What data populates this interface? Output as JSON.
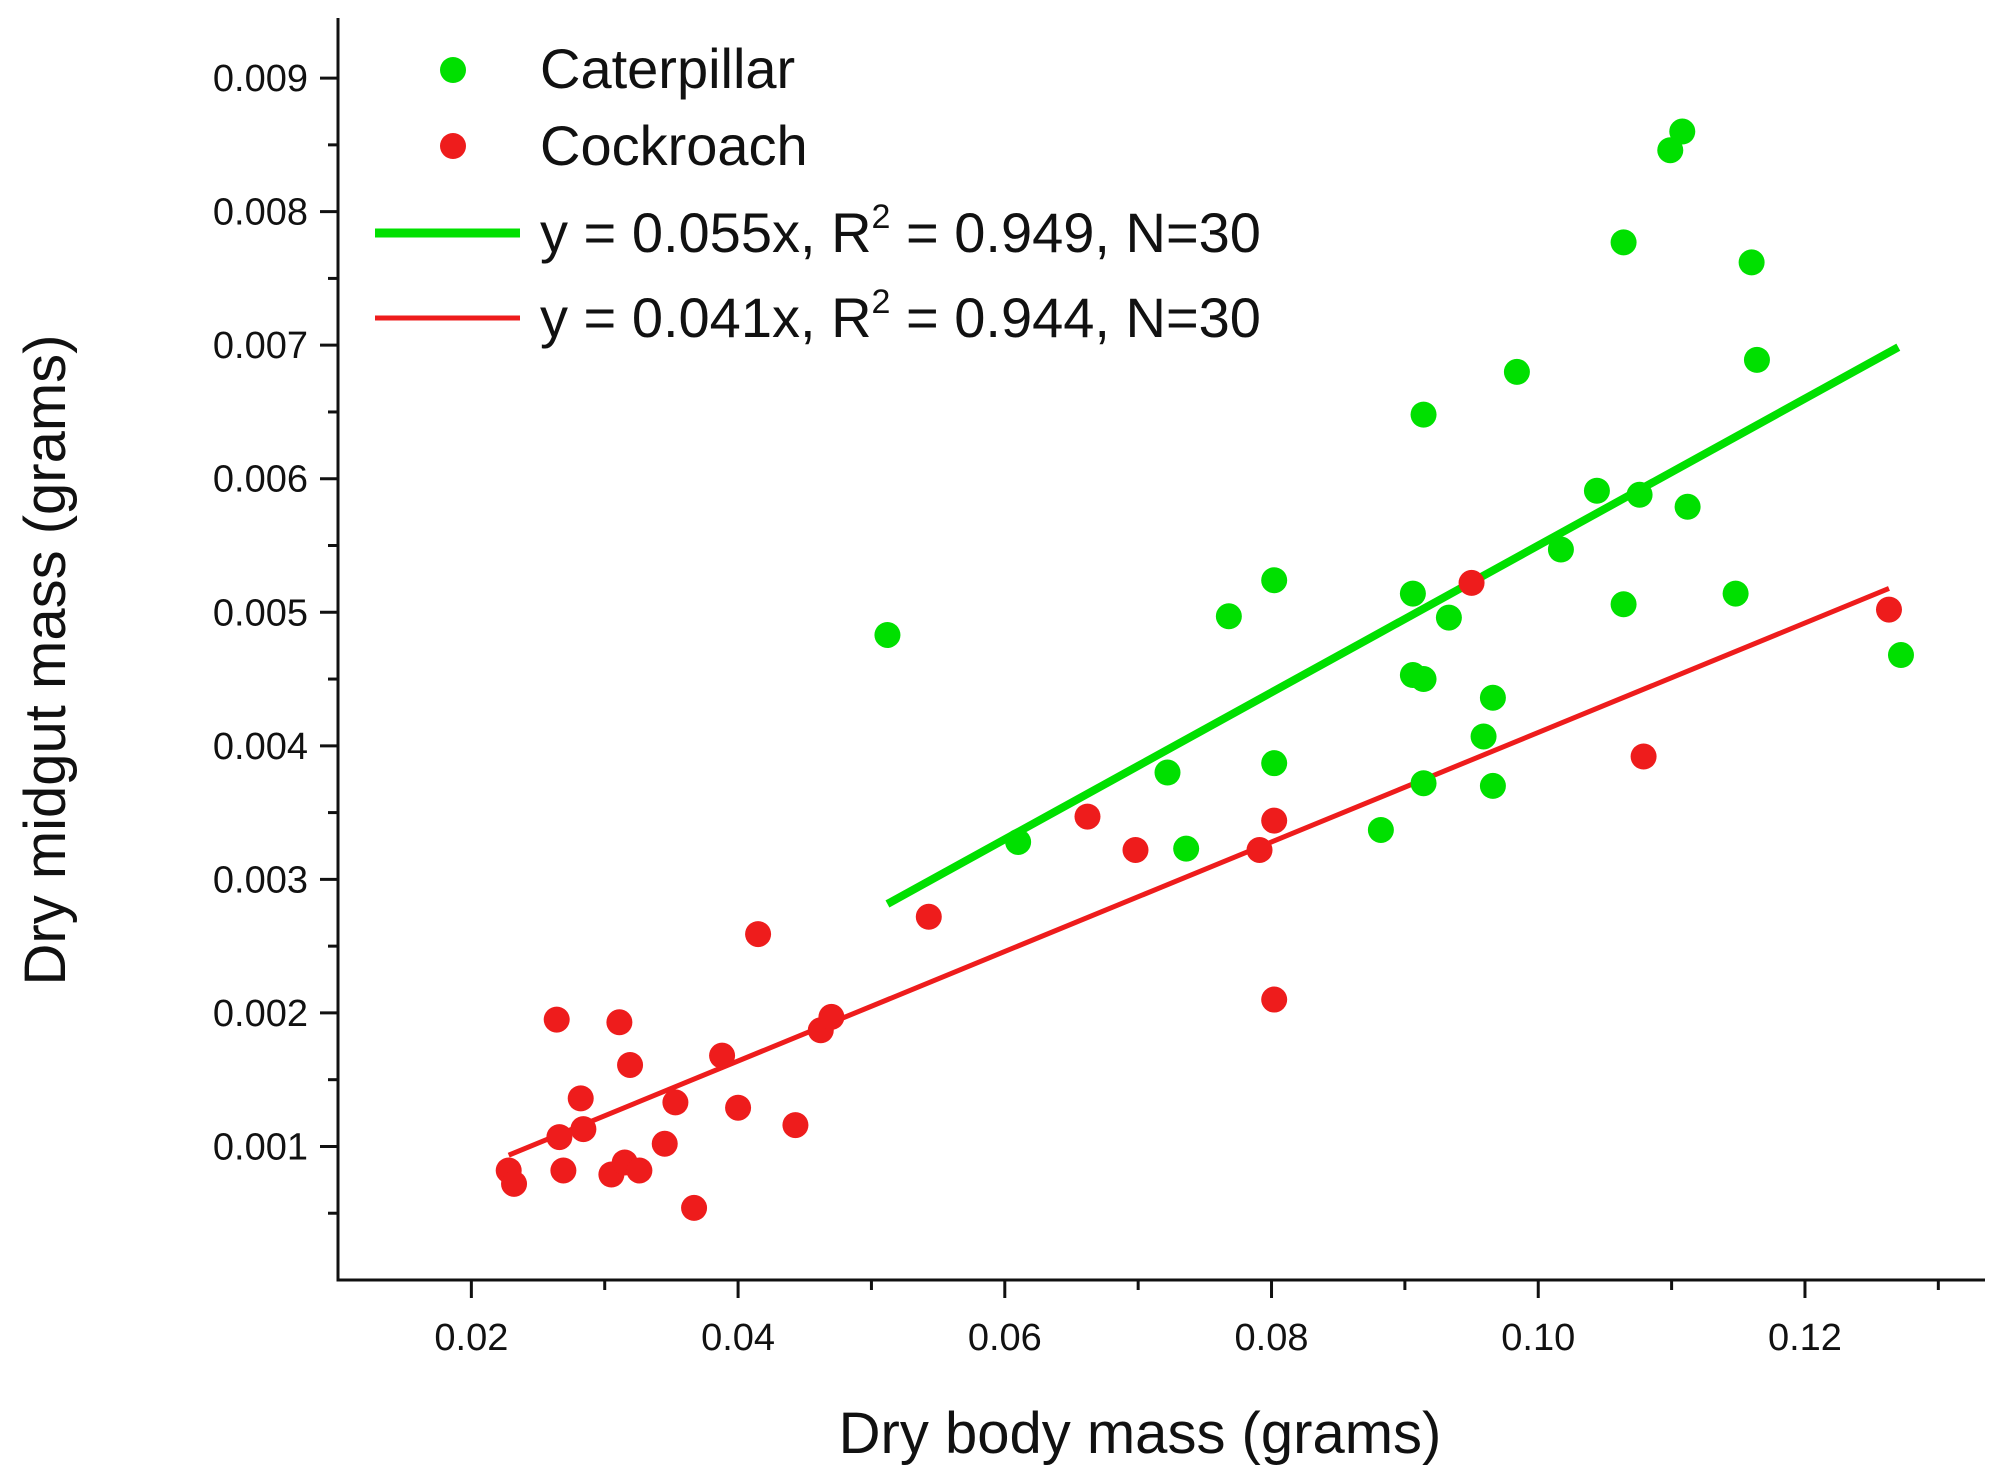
{
  "chart_data": {
    "type": "scatter",
    "title": "",
    "xlabel": "Dry body mass (grams)",
    "ylabel": "Dry midgut mass (grams)",
    "xlim": [
      0.01,
      0.1335
    ],
    "ylim": [
      0.0,
      0.00945
    ],
    "x_ticks": [
      "0.02",
      "0.04",
      "0.06",
      "0.08",
      "0.10",
      "0.12"
    ],
    "y_ticks": [
      "0.001",
      "0.002",
      "0.003",
      "0.004",
      "0.005",
      "0.006",
      "0.007",
      "0.008",
      "0.009"
    ],
    "grid": false,
    "legend_position": "top-left",
    "series": [
      {
        "name": "Caterpillar",
        "color": "#00e000",
        "points": [
          [
            0.0512,
            0.00483
          ],
          [
            0.061,
            0.00328
          ],
          [
            0.0722,
            0.0038
          ],
          [
            0.0736,
            0.00323
          ],
          [
            0.0768,
            0.00497
          ],
          [
            0.0802,
            0.00524
          ],
          [
            0.0802,
            0.00387
          ],
          [
            0.0882,
            0.00337
          ],
          [
            0.0906,
            0.00514
          ],
          [
            0.0906,
            0.00453
          ],
          [
            0.0914,
            0.0045
          ],
          [
            0.0914,
            0.00648
          ],
          [
            0.0914,
            0.00372
          ],
          [
            0.0933,
            0.00496
          ],
          [
            0.0959,
            0.00407
          ],
          [
            0.0966,
            0.00436
          ],
          [
            0.0966,
            0.0037
          ],
          [
            0.0984,
            0.0068
          ],
          [
            0.1017,
            0.00547
          ],
          [
            0.1044,
            0.00591
          ],
          [
            0.1064,
            0.00777
          ],
          [
            0.1064,
            0.00506
          ],
          [
            0.1076,
            0.00588
          ],
          [
            0.1099,
            0.00846
          ],
          [
            0.1108,
            0.0086
          ],
          [
            0.1112,
            0.00579
          ],
          [
            0.1148,
            0.00514
          ],
          [
            0.116,
            0.00762
          ],
          [
            0.1164,
            0.00689
          ],
          [
            0.1272,
            0.00468
          ]
        ]
      },
      {
        "name": "Cockroach",
        "color": "#ee1c1c",
        "points": [
          [
            0.0228,
            0.00082
          ],
          [
            0.0232,
            0.00072
          ],
          [
            0.0264,
            0.00195
          ],
          [
            0.0266,
            0.00107
          ],
          [
            0.0269,
            0.00082
          ],
          [
            0.0282,
            0.00136
          ],
          [
            0.0284,
            0.00113
          ],
          [
            0.0305,
            0.00079
          ],
          [
            0.0311,
            0.00193
          ],
          [
            0.0315,
            0.00088
          ],
          [
            0.0319,
            0.00161
          ],
          [
            0.0326,
            0.00082
          ],
          [
            0.0345,
            0.00102
          ],
          [
            0.0353,
            0.00133
          ],
          [
            0.0367,
            0.00054
          ],
          [
            0.0388,
            0.00168
          ],
          [
            0.04,
            0.00129
          ],
          [
            0.0415,
            0.00259
          ],
          [
            0.0443,
            0.00116
          ],
          [
            0.0462,
            0.00187
          ],
          [
            0.047,
            0.00197
          ],
          [
            0.0543,
            0.00272
          ],
          [
            0.0662,
            0.00347
          ],
          [
            0.0698,
            0.00322
          ],
          [
            0.0791,
            0.00322
          ],
          [
            0.0802,
            0.00344
          ],
          [
            0.0802,
            0.0021
          ],
          [
            0.095,
            0.00522
          ],
          [
            0.1079,
            0.00392
          ],
          [
            0.1263,
            0.00502
          ]
        ]
      }
    ],
    "fits": [
      {
        "series": "Caterpillar",
        "label_prefix": "y = 0.055x,  R",
        "label_sup": "2",
        "label_suffix": " = 0.949, N=30",
        "slope": 0.055,
        "r_squared": 0.949,
        "n": 30,
        "x_range": [
          0.0512,
          0.127
        ],
        "color": "#00e000"
      },
      {
        "series": "Cockroach",
        "label_prefix": "y = 0.041x,  R",
        "label_sup": "2",
        "label_suffix": " = 0.944, N=30",
        "slope": 0.041,
        "r_squared": 0.944,
        "n": 30,
        "x_range": [
          0.0228,
          0.1263
        ],
        "color": "#ee1c1c"
      }
    ]
  }
}
